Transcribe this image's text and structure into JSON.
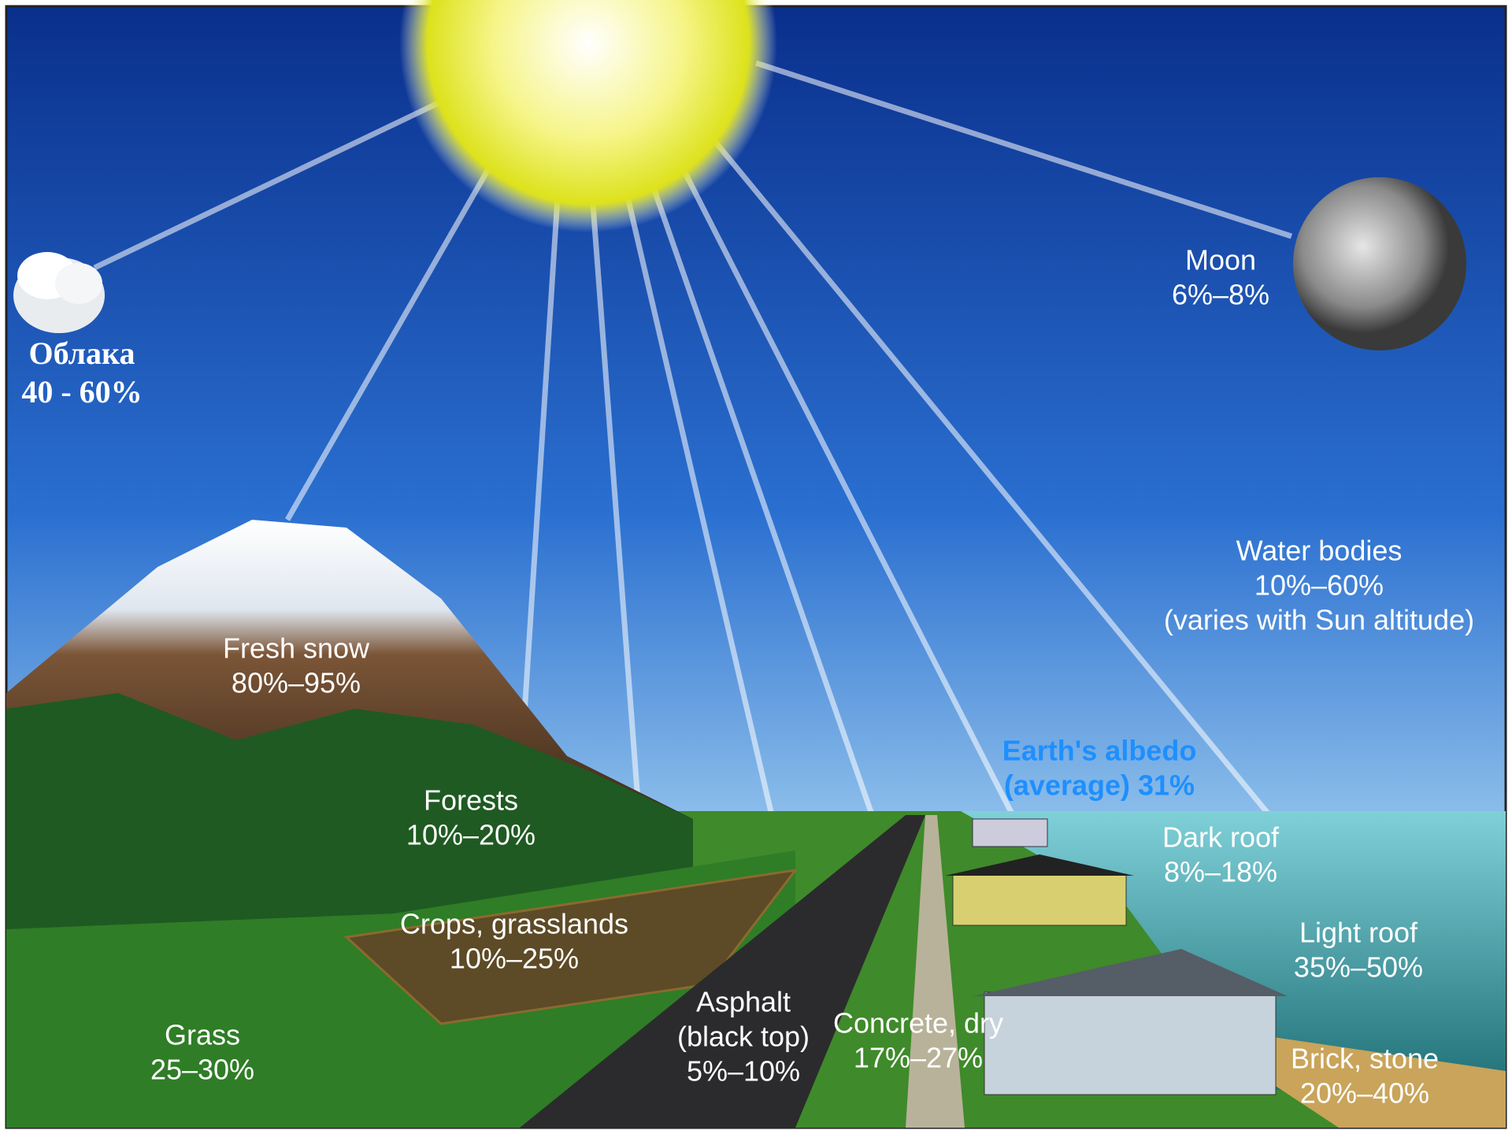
{
  "labels": [
    {
      "lines": [
        "Облака",
        "40 - 60%"
      ]
    },
    {
      "lines": [
        "Moon",
        "6%–8%"
      ]
    },
    {
      "lines": [
        "Water bodies",
        "10%–60%",
        "(varies with Sun altitude)"
      ]
    },
    {
      "lines": [
        "Fresh snow",
        "80%–95%"
      ]
    },
    {
      "lines": [
        "Earth's albedo",
        "(average) 31%"
      ]
    },
    {
      "lines": [
        "Forests",
        "10%–20%"
      ]
    },
    {
      "lines": [
        "Dark roof",
        "8%–18%"
      ]
    },
    {
      "lines": [
        "Crops, grasslands",
        "10%–25%"
      ]
    },
    {
      "lines": [
        "Light roof",
        "35%–50%"
      ]
    },
    {
      "lines": [
        "Asphalt",
        "(black top)",
        "5%–10%"
      ]
    },
    {
      "lines": [
        "Concrete, dry",
        "17%–27%"
      ]
    },
    {
      "lines": [
        "Grass",
        "25–30%"
      ]
    },
    {
      "lines": [
        "Brick, stone",
        "20%–40%"
      ]
    }
  ]
}
